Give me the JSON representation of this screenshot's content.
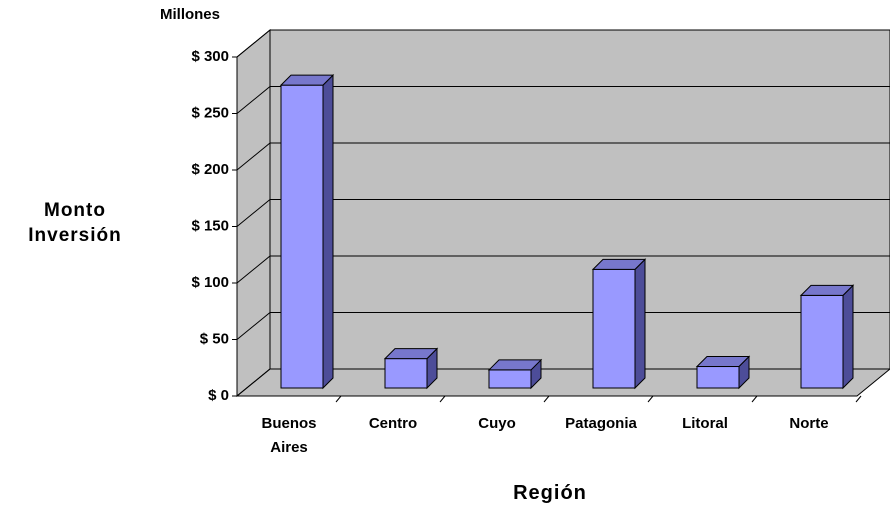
{
  "chart_data": {
    "type": "bar3d",
    "y_unit_label": "Millones",
    "y_label": "Monto Inversión",
    "x_label": "Región",
    "categories": [
      "Buenos Aires",
      "Centro",
      "Cuyo",
      "Patagonia",
      "Litoral",
      "Norte"
    ],
    "values": [
      268,
      26,
      16,
      105,
      19,
      82
    ],
    "color": "#9999ff",
    "ylim": [
      0,
      300
    ],
    "yticks": [
      {
        "value": 0,
        "label": "$ 0"
      },
      {
        "value": 50,
        "label": "$ 50"
      },
      {
        "value": 100,
        "label": "$ 100"
      },
      {
        "value": 150,
        "label": "$ 150"
      },
      {
        "value": 200,
        "label": "$ 200"
      },
      {
        "value": 250,
        "label": "$ 250"
      },
      {
        "value": 300,
        "label": "$ 300"
      }
    ],
    "grid": true
  }
}
